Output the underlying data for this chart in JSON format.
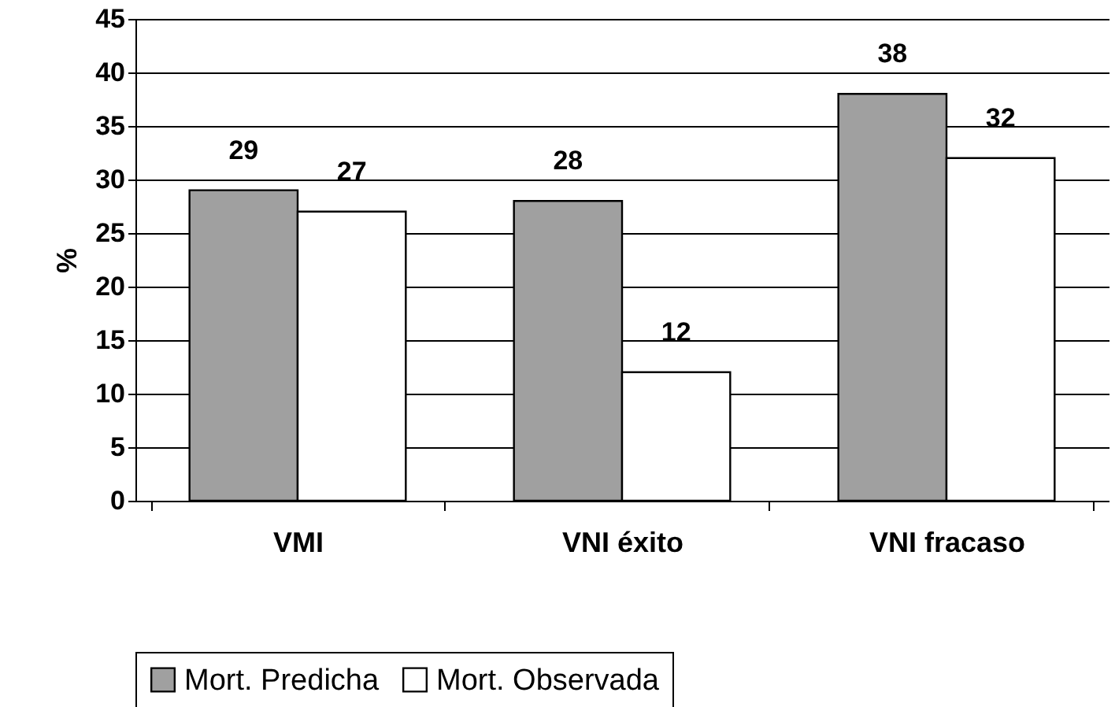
{
  "chart_data": {
    "type": "bar",
    "ylabel": "%",
    "categories": [
      "VMI",
      "VNI éxito",
      "VNI fracaso"
    ],
    "series": [
      {
        "name": "Mort. Predicha",
        "color": "#a0a0a0",
        "values": [
          29,
          28,
          38
        ]
      },
      {
        "name": "Mort. Observada",
        "color": "#ffffff",
        "values": [
          27,
          12,
          32
        ]
      }
    ],
    "ylim": [
      0,
      45
    ],
    "yticks": [
      0,
      5,
      10,
      15,
      20,
      25,
      30,
      35,
      40,
      45
    ],
    "grid": "y",
    "legend": "bottom",
    "data_labels": true
  }
}
